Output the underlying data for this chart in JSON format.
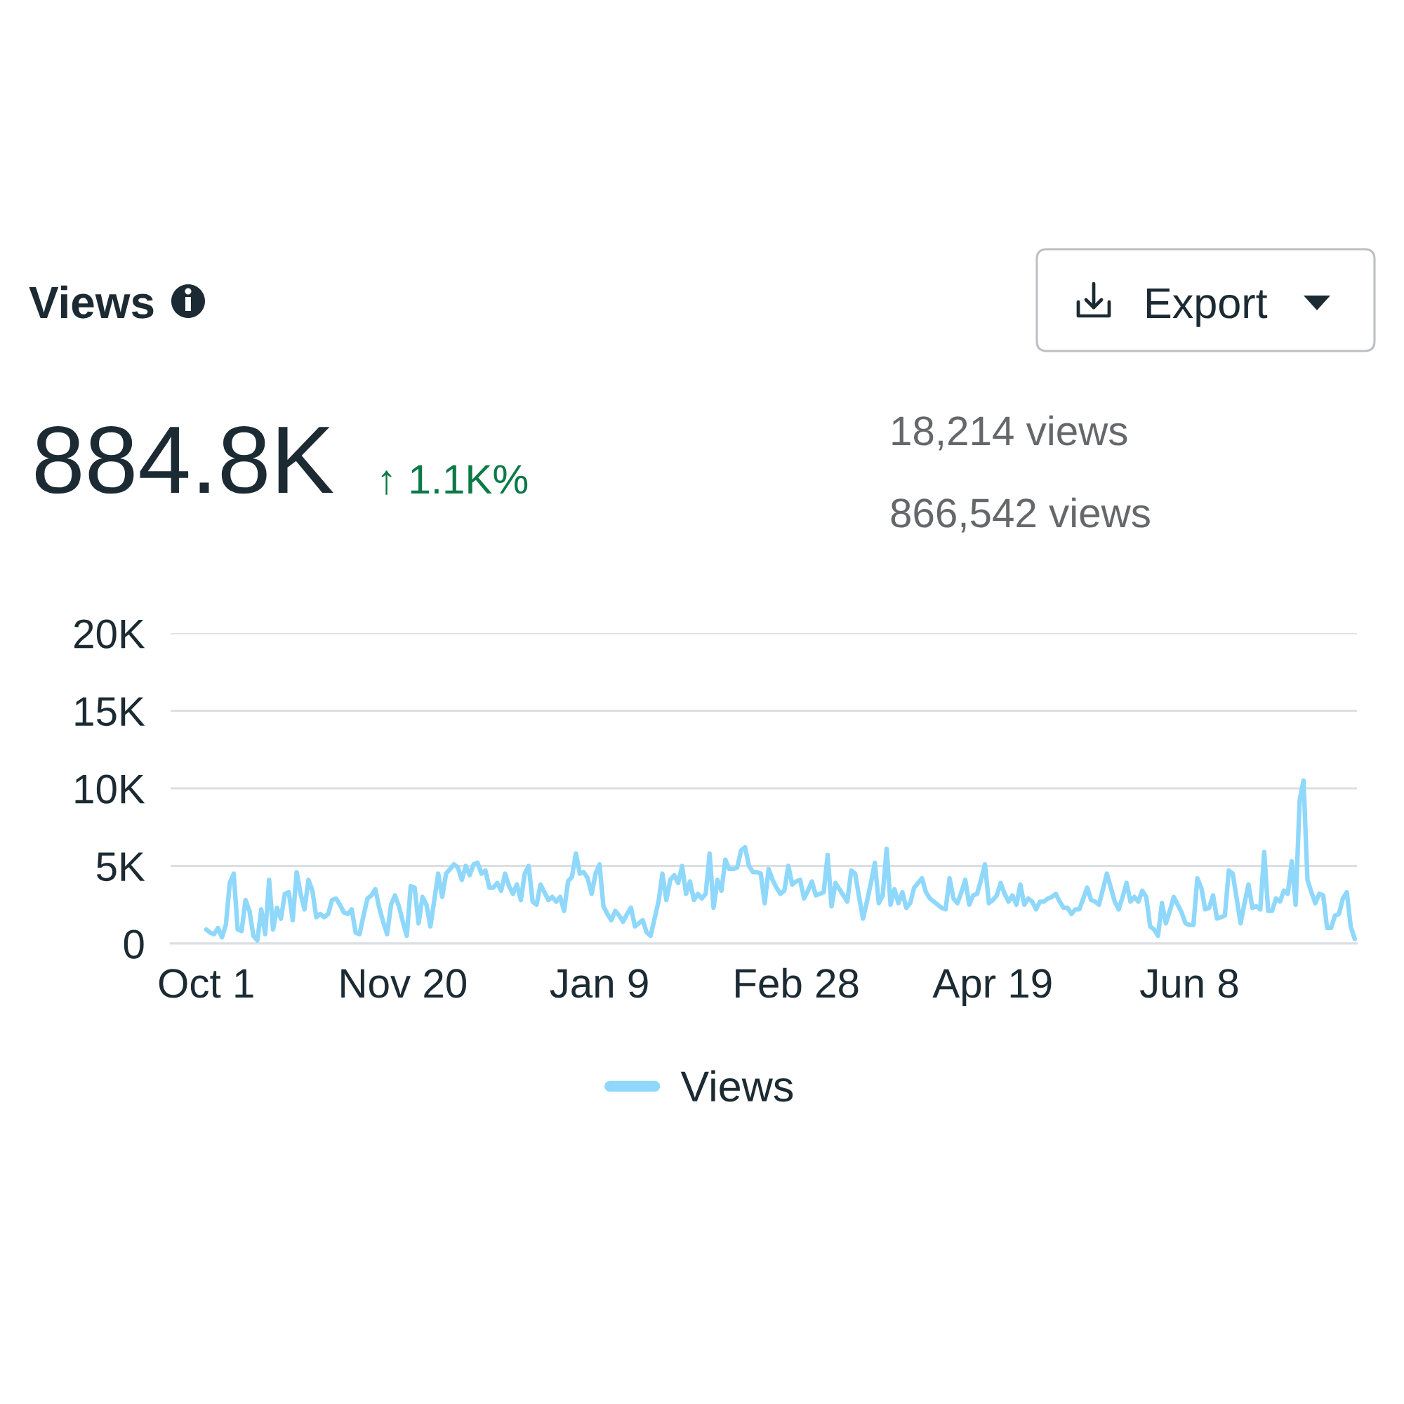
{
  "chart_data": {
    "type": "line",
    "title": "Views",
    "annotations": [
      "Export",
      "884.8K",
      "↑ 1.1K%",
      "18,214 views",
      "866,542 views"
    ],
    "categories": [
      "Oct 1",
      null,
      null,
      null,
      null,
      null,
      null,
      null,
      null,
      null,
      null,
      null,
      null,
      null,
      null,
      null,
      null,
      null,
      null,
      null,
      null,
      null,
      null,
      null,
      null,
      null,
      null,
      null,
      null,
      null,
      null,
      null,
      null,
      null,
      null,
      null,
      null,
      null,
      null,
      null,
      null,
      null,
      null,
      null,
      null,
      null,
      null,
      null,
      null,
      null,
      "Nov 20",
      null,
      null,
      null,
      null,
      null,
      null,
      null,
      null,
      null,
      null,
      null,
      null,
      null,
      null,
      null,
      null,
      null,
      null,
      null,
      null,
      null,
      null,
      null,
      null,
      null,
      null,
      null,
      null,
      null,
      null,
      null,
      null,
      null,
      null,
      null,
      null,
      null,
      null,
      null,
      null,
      null,
      null,
      null,
      null,
      null,
      null,
      null,
      null,
      null,
      "Jan 9",
      null,
      null,
      null,
      null,
      null,
      null,
      null,
      null,
      null,
      null,
      null,
      null,
      null,
      null,
      null,
      null,
      null,
      null,
      null,
      null,
      null,
      null,
      null,
      null,
      null,
      null,
      null,
      null,
      null,
      null,
      null,
      null,
      null,
      null,
      null,
      null,
      null,
      null,
      null,
      null,
      null,
      null,
      null,
      null,
      null,
      null,
      null,
      null,
      null,
      "Feb 28",
      null,
      null,
      null,
      null,
      null,
      null,
      null,
      null,
      null,
      null,
      null,
      null,
      null,
      null,
      null,
      null,
      null,
      null,
      null,
      null,
      null,
      null,
      null,
      null,
      null,
      null,
      null,
      null,
      null,
      null,
      null,
      null,
      null,
      null,
      null,
      null,
      null,
      null,
      null,
      null,
      null,
      null,
      null,
      null,
      null,
      null,
      null,
      null,
      null,
      "Apr 19",
      null,
      null,
      null,
      null,
      null,
      null,
      null,
      null,
      null,
      null,
      null,
      null,
      null,
      null,
      null,
      null,
      null,
      null,
      null,
      null,
      null,
      null,
      null,
      null,
      null,
      null,
      null,
      null,
      null,
      null,
      null,
      null,
      null,
      null,
      null,
      null,
      null,
      null,
      null,
      null,
      null,
      null,
      null,
      null,
      null,
      null,
      null,
      null,
      null,
      "Jun 8",
      null,
      null,
      null,
      null,
      null,
      null,
      null,
      null,
      null,
      null,
      null,
      null,
      null,
      null,
      null,
      null,
      null,
      null,
      null,
      null,
      null,
      null,
      null,
      null,
      null,
      null,
      null,
      null,
      null,
      null,
      null,
      null,
      null,
      null,
      null,
      null,
      null,
      null,
      null,
      null,
      null,
      null
    ],
    "ylim": [
      0,
      20000
    ],
    "yticks": [
      0,
      {
        "value": 5000,
        "label": "5K"
      },
      {
        "value": 10000,
        "label": "10K"
      },
      {
        "value": 15000,
        "label": "15K"
      },
      {
        "value": 20000,
        "label": "20K"
      }
    ],
    "series": [
      {
        "name": "Views",
        "color": "#8fd8fb",
        "values": [
          900,
          700,
          600,
          1000,
          400,
          1200,
          3900,
          4500,
          900,
          800,
          2800,
          2100,
          500,
          200,
          2200,
          600,
          4100,
          900,
          2300,
          1600,
          3200,
          3300,
          1500,
          4600,
          3200,
          2200,
          4100,
          3400,
          1700,
          1900,
          1700,
          1900,
          2800,
          2900,
          2500,
          2000,
          1900,
          2200,
          700,
          600,
          1800,
          2900,
          3100,
          3500,
          2300,
          1400,
          600,
          2500,
          3100,
          2400,
          1400,
          500,
          3700,
          3600,
          1300,
          3000,
          2500,
          1100,
          2800,
          4500,
          3000,
          4500,
          4800,
          5100,
          4900,
          4100,
          5000,
          4400,
          5100,
          5200,
          4500,
          4700,
          3600,
          3600,
          3900,
          3400,
          4500,
          3700,
          3200,
          3800,
          2800,
          4500,
          5000,
          2700,
          2500,
          3800,
          3300,
          2800,
          3000,
          2700,
          3000,
          2100,
          4000,
          4300,
          5800,
          4500,
          4600,
          4200,
          3200,
          4500,
          5100,
          2400,
          1900,
          1500,
          2100,
          1800,
          1400,
          1900,
          2300,
          1100,
          1300,
          1500,
          700,
          500,
          1600,
          2700,
          4500,
          2800,
          4100,
          4400,
          3900,
          5000,
          3200,
          4000,
          2800,
          3200,
          2900,
          3200,
          5800,
          2300,
          4100,
          3400,
          5400,
          4800,
          4800,
          4900,
          6000,
          6200,
          5000,
          4600,
          4600,
          4500,
          2600,
          4800,
          4100,
          3600,
          3200,
          3400,
          5000,
          3800,
          4000,
          4100,
          2900,
          3400,
          4000,
          3100,
          3200,
          3300,
          5700,
          2400,
          3900,
          3500,
          3100,
          2700,
          4700,
          4500,
          3000,
          1600,
          2700,
          3900,
          5200,
          2600,
          3100,
          6100,
          2500,
          3500,
          2600,
          3300,
          2300,
          2600,
          3600,
          3900,
          4200,
          3300,
          2900,
          2700,
          2500,
          2300,
          2200,
          4200,
          2900,
          2600,
          3300,
          4100,
          2500,
          3100,
          3200,
          4100,
          5100,
          2600,
          2800,
          3100,
          3900,
          3200,
          2700,
          3100,
          2500,
          3800,
          2500,
          2900,
          2700,
          2200,
          2700,
          2700,
          2900,
          3000,
          3200,
          2700,
          2300,
          2300,
          1900,
          2200,
          2200,
          2900,
          3600,
          2800,
          2700,
          2500,
          3500,
          4500,
          3600,
          2700,
          2200,
          3000,
          3900,
          2700,
          3000,
          2700,
          3400,
          3000,
          1100,
          900,
          500,
          2600,
          1300,
          2100,
          3000,
          2500,
          2000,
          1300,
          1200,
          1200,
          4200,
          3600,
          2200,
          2300,
          3100,
          1600,
          1700,
          1800,
          4700,
          4500,
          2900,
          1300,
          2600,
          3800,
          2300,
          2400,
          2200,
          5900,
          2100,
          2100,
          2900,
          2700,
          3400,
          3200,
          5300,
          2500,
          9200,
          10500,
          4100,
          3300,
          2600,
          3200,
          3100,
          1000,
          1000,
          1800,
          1900,
          2900,
          3300,
          1100,
          300
        ]
      }
    ],
    "grid": "y",
    "legend": "bottom",
    "marker": "none",
    "line_style": "solid"
  }
}
